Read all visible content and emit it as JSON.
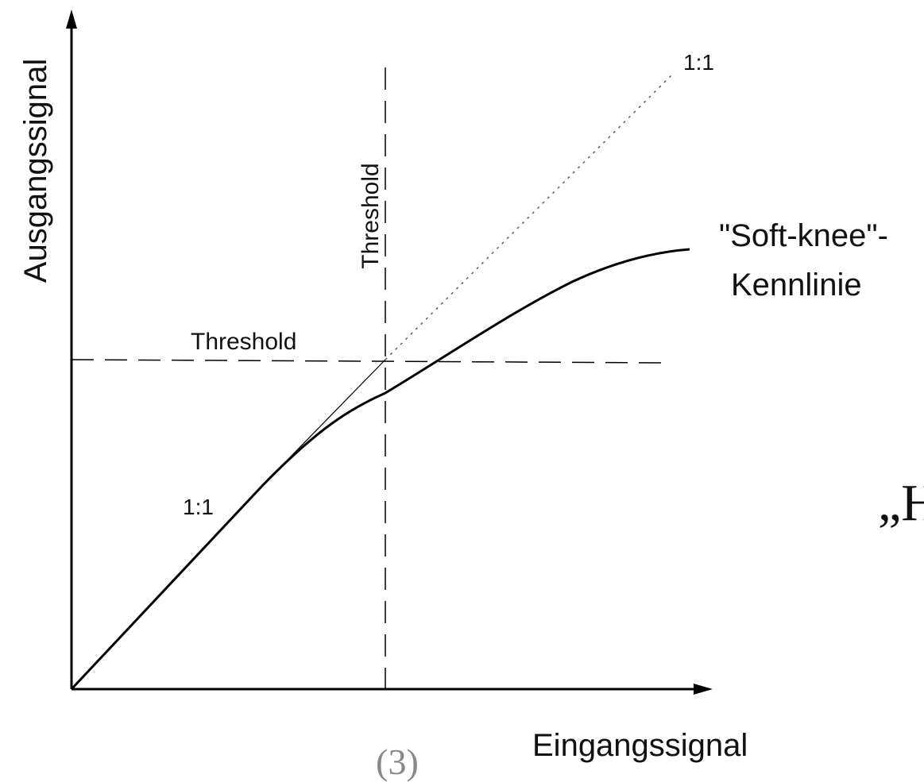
{
  "axes": {
    "y_label": "Ausgangssignal",
    "x_label": "Eingangssignal"
  },
  "threshold": {
    "vertical_label": "Threshold",
    "horizontal_label": "Threshold"
  },
  "ratio_labels": {
    "upper": "1:1",
    "lower": "1:1"
  },
  "curve_label": {
    "line1": "\"Soft-knee\"-",
    "line2": "Kennlinie"
  },
  "fragment": "„H",
  "footer": "(3)"
}
